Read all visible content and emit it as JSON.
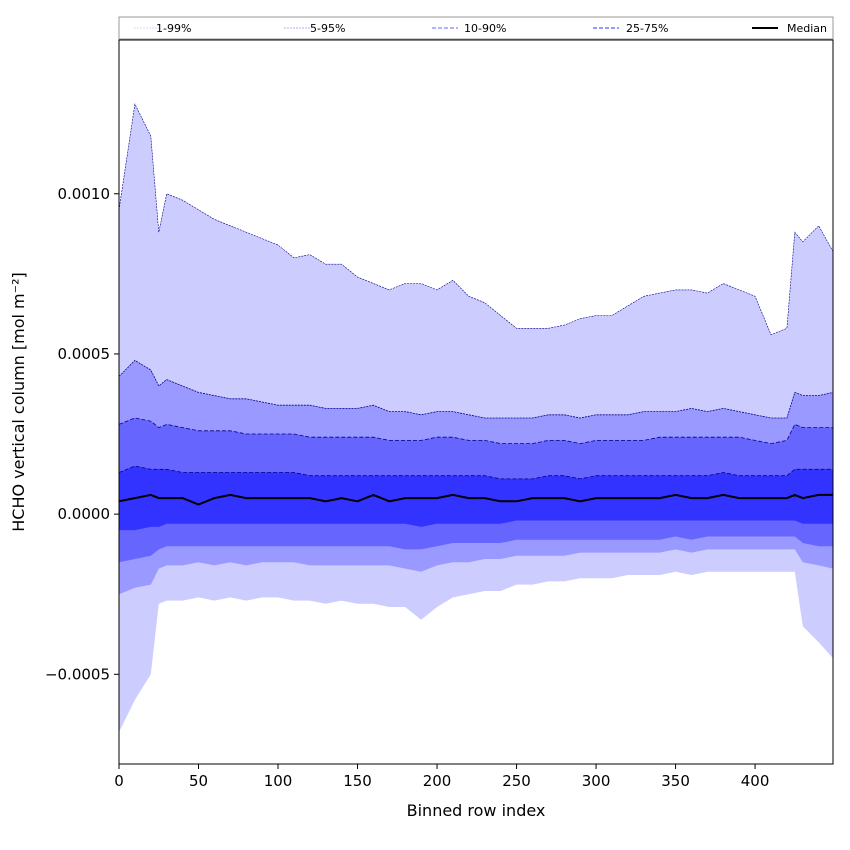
{
  "chart_data": {
    "type": "area",
    "title": "",
    "xlabel": "Binned row index",
    "ylabel": "HCHO vertical column [mol m⁻²]",
    "xlim": [
      0,
      449
    ],
    "ylim": [
      -0.00078,
      0.00148
    ],
    "x_ticks": [
      0,
      50,
      100,
      150,
      200,
      250,
      300,
      350,
      400
    ],
    "x_tick_labels": [
      "0",
      "50",
      "100",
      "150",
      "200",
      "250",
      "300",
      "350",
      "400"
    ],
    "y_ticks": [
      -0.0005,
      0.0,
      0.0005,
      0.001
    ],
    "y_tick_labels": [
      "−0.0005",
      "0.0000",
      "0.0005",
      "0.0010"
    ],
    "grid": false,
    "legend_position": "top",
    "colors": {
      "band_1_99": "#ccccff",
      "band_5_95": "#9999ff",
      "band_10_90": "#6666ff",
      "band_25_75": "#3333ff",
      "edge": "#00008b",
      "median": "#000000"
    },
    "legend": [
      "1-99%",
      "5-95%",
      "10-90%",
      "25-75%",
      "Median"
    ],
    "x": [
      0,
      10,
      20,
      25,
      30,
      40,
      50,
      60,
      70,
      80,
      90,
      100,
      110,
      120,
      130,
      140,
      150,
      160,
      170,
      180,
      190,
      200,
      210,
      220,
      230,
      240,
      250,
      260,
      270,
      280,
      290,
      300,
      310,
      320,
      330,
      340,
      350,
      360,
      370,
      380,
      390,
      400,
      410,
      420,
      425,
      430,
      440,
      449
    ],
    "series": [
      {
        "name": "1-99%",
        "lower": [
          -0.00068,
          -0.00058,
          -0.0005,
          -0.00028,
          -0.00027,
          -0.00027,
          -0.00026,
          -0.00027,
          -0.00026,
          -0.00027,
          -0.00026,
          -0.00026,
          -0.00027,
          -0.00027,
          -0.00028,
          -0.00027,
          -0.00028,
          -0.00028,
          -0.00029,
          -0.00029,
          -0.00033,
          -0.00029,
          -0.00026,
          -0.00025,
          -0.00024,
          -0.00024,
          -0.00022,
          -0.00022,
          -0.00021,
          -0.00021,
          -0.0002,
          -0.0002,
          -0.0002,
          -0.00019,
          -0.00019,
          -0.00019,
          -0.00018,
          -0.00019,
          -0.00018,
          -0.00018,
          -0.00018,
          -0.00018,
          -0.00018,
          -0.00018,
          -0.00018,
          -0.00035,
          -0.0004,
          -0.00045
        ],
        "upper": [
          0.00095,
          0.00128,
          0.00118,
          0.00088,
          0.001,
          0.00098,
          0.00095,
          0.00092,
          0.0009,
          0.00088,
          0.00086,
          0.00084,
          0.0008,
          0.00081,
          0.00078,
          0.00078,
          0.00074,
          0.00072,
          0.0007,
          0.00072,
          0.00072,
          0.0007,
          0.00073,
          0.00068,
          0.00066,
          0.00062,
          0.00058,
          0.00058,
          0.00058,
          0.00059,
          0.00061,
          0.00062,
          0.00062,
          0.00065,
          0.00068,
          0.00069,
          0.0007,
          0.0007,
          0.00069,
          0.00072,
          0.0007,
          0.00068,
          0.00056,
          0.00058,
          0.00088,
          0.00085,
          0.0009,
          0.00082
        ]
      },
      {
        "name": "5-95%",
        "lower": [
          -0.00025,
          -0.00023,
          -0.00022,
          -0.00017,
          -0.00016,
          -0.00016,
          -0.00015,
          -0.00016,
          -0.00015,
          -0.00016,
          -0.00015,
          -0.00015,
          -0.00015,
          -0.00016,
          -0.00016,
          -0.00016,
          -0.00016,
          -0.00016,
          -0.00016,
          -0.00017,
          -0.00018,
          -0.00016,
          -0.00015,
          -0.00015,
          -0.00014,
          -0.00014,
          -0.00013,
          -0.00013,
          -0.00013,
          -0.00013,
          -0.00012,
          -0.00012,
          -0.00012,
          -0.00012,
          -0.00012,
          -0.00012,
          -0.00011,
          -0.00012,
          -0.00011,
          -0.00011,
          -0.00011,
          -0.00011,
          -0.00011,
          -0.00011,
          -0.00011,
          -0.00015,
          -0.00016,
          -0.00017
        ],
        "upper": [
          0.00043,
          0.00048,
          0.00045,
          0.0004,
          0.00042,
          0.0004,
          0.00038,
          0.00037,
          0.00036,
          0.00036,
          0.00035,
          0.00034,
          0.00034,
          0.00034,
          0.00033,
          0.00033,
          0.00033,
          0.00034,
          0.00032,
          0.00032,
          0.00031,
          0.00032,
          0.00032,
          0.00031,
          0.0003,
          0.0003,
          0.0003,
          0.0003,
          0.00031,
          0.00031,
          0.0003,
          0.00031,
          0.00031,
          0.00031,
          0.00032,
          0.00032,
          0.00032,
          0.00033,
          0.00032,
          0.00033,
          0.00032,
          0.00031,
          0.0003,
          0.0003,
          0.00038,
          0.00037,
          0.00037,
          0.00038
        ]
      },
      {
        "name": "10-90%",
        "lower": [
          -0.00015,
          -0.00014,
          -0.00013,
          -0.00011,
          -0.0001,
          -0.0001,
          -0.0001,
          -0.0001,
          -0.0001,
          -0.0001,
          -0.0001,
          -0.0001,
          -0.0001,
          -0.0001,
          -0.0001,
          -0.0001,
          -0.0001,
          -0.0001,
          -0.0001,
          -0.00011,
          -0.00011,
          -0.0001,
          -9e-05,
          -9e-05,
          -9e-05,
          -9e-05,
          -8e-05,
          -8e-05,
          -8e-05,
          -8e-05,
          -8e-05,
          -8e-05,
          -8e-05,
          -8e-05,
          -8e-05,
          -8e-05,
          -7e-05,
          -8e-05,
          -7e-05,
          -7e-05,
          -7e-05,
          -7e-05,
          -7e-05,
          -7e-05,
          -7e-05,
          -9e-05,
          -0.0001,
          -0.0001
        ],
        "upper": [
          0.00028,
          0.0003,
          0.00029,
          0.00027,
          0.00028,
          0.00027,
          0.00026,
          0.00026,
          0.00026,
          0.00025,
          0.00025,
          0.00025,
          0.00025,
          0.00024,
          0.00024,
          0.00024,
          0.00024,
          0.00024,
          0.00023,
          0.00023,
          0.00023,
          0.00024,
          0.00024,
          0.00023,
          0.00023,
          0.00022,
          0.00022,
          0.00022,
          0.00023,
          0.00023,
          0.00022,
          0.00023,
          0.00023,
          0.00023,
          0.00023,
          0.00024,
          0.00024,
          0.00024,
          0.00024,
          0.00024,
          0.00024,
          0.00023,
          0.00022,
          0.00023,
          0.00028,
          0.00027,
          0.00027,
          0.00027
        ]
      },
      {
        "name": "25-75%",
        "lower": [
          -5e-05,
          -5e-05,
          -4e-05,
          -4e-05,
          -3e-05,
          -3e-05,
          -3e-05,
          -3e-05,
          -3e-05,
          -3e-05,
          -3e-05,
          -3e-05,
          -3e-05,
          -3e-05,
          -3e-05,
          -3e-05,
          -3e-05,
          -3e-05,
          -3e-05,
          -3e-05,
          -4e-05,
          -3e-05,
          -3e-05,
          -3e-05,
          -3e-05,
          -3e-05,
          -2e-05,
          -2e-05,
          -2e-05,
          -2e-05,
          -2e-05,
          -2e-05,
          -2e-05,
          -2e-05,
          -2e-05,
          -2e-05,
          -2e-05,
          -2e-05,
          -2e-05,
          -2e-05,
          -2e-05,
          -2e-05,
          -2e-05,
          -2e-05,
          -2e-05,
          -3e-05,
          -3e-05,
          -3e-05
        ],
        "upper": [
          0.00013,
          0.00015,
          0.00014,
          0.00014,
          0.00014,
          0.00013,
          0.00013,
          0.00013,
          0.00013,
          0.00013,
          0.00013,
          0.00013,
          0.00013,
          0.00012,
          0.00012,
          0.00012,
          0.00012,
          0.00012,
          0.00012,
          0.00012,
          0.00012,
          0.00012,
          0.00012,
          0.00012,
          0.00012,
          0.00011,
          0.00011,
          0.00011,
          0.00012,
          0.00012,
          0.00011,
          0.00012,
          0.00012,
          0.00012,
          0.00012,
          0.00012,
          0.00012,
          0.00012,
          0.00012,
          0.00013,
          0.00012,
          0.00012,
          0.00012,
          0.00012,
          0.00014,
          0.00014,
          0.00014,
          0.00014
        ]
      },
      {
        "name": "Median",
        "values": [
          4e-05,
          5e-05,
          6e-05,
          5e-05,
          5e-05,
          5e-05,
          3e-05,
          5e-05,
          6e-05,
          5e-05,
          5e-05,
          5e-05,
          5e-05,
          5e-05,
          4e-05,
          5e-05,
          4e-05,
          6e-05,
          4e-05,
          5e-05,
          5e-05,
          5e-05,
          6e-05,
          5e-05,
          5e-05,
          4e-05,
          4e-05,
          5e-05,
          5e-05,
          5e-05,
          4e-05,
          5e-05,
          5e-05,
          5e-05,
          5e-05,
          5e-05,
          6e-05,
          5e-05,
          5e-05,
          6e-05,
          5e-05,
          5e-05,
          5e-05,
          5e-05,
          6e-05,
          5e-05,
          6e-05,
          6e-05
        ]
      }
    ]
  }
}
